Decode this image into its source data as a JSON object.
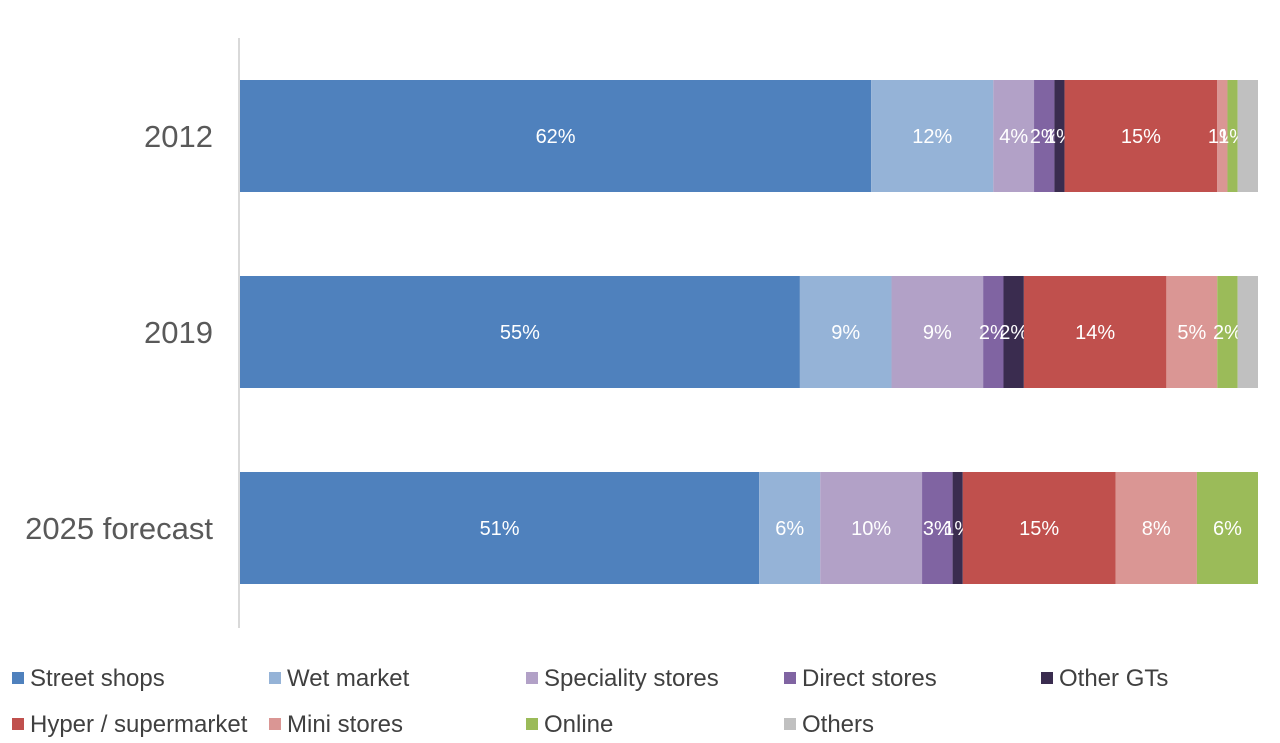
{
  "chart_data": {
    "type": "bar",
    "orientation": "horizontal",
    "stacked": true,
    "categories": [
      "2012",
      "2019",
      "2025 forecast"
    ],
    "series": [
      {
        "name": "Street shops",
        "color": "#4F81BD",
        "values": [
          62,
          55,
          51
        ],
        "labels": [
          "62%",
          "55%",
          "51%"
        ]
      },
      {
        "name": "Wet market",
        "color": "#95B3D7",
        "values": [
          12,
          9,
          6
        ],
        "labels": [
          "12%",
          "9%",
          "6%"
        ]
      },
      {
        "name": "Speciality stores",
        "color": "#B2A1C7",
        "values": [
          4,
          9,
          10
        ],
        "labels": [
          "4%",
          "9%",
          "10%"
        ]
      },
      {
        "name": "Direct stores",
        "color": "#8064A2",
        "values": [
          2,
          2,
          3
        ],
        "labels": [
          "2%",
          "2%",
          "3%"
        ]
      },
      {
        "name": "Other GTs",
        "color": "#3A2C4F",
        "values": [
          1,
          2,
          1
        ],
        "labels": [
          "1%",
          "2%",
          "1%"
        ]
      },
      {
        "name": "Hyper / supermarket",
        "color": "#C0504D",
        "values": [
          15,
          14,
          15
        ],
        "labels": [
          "15%",
          "14%",
          "15%"
        ]
      },
      {
        "name": "Mini stores",
        "color": "#DA9694",
        "values": [
          1,
          5,
          8
        ],
        "labels": [
          "1%",
          "5%",
          "8%"
        ]
      },
      {
        "name": "Online",
        "color": "#9BBB59",
        "values": [
          1,
          2,
          6
        ],
        "labels": [
          "1%",
          "2%",
          "6%"
        ]
      },
      {
        "name": "Others",
        "color": "#C0C0C0",
        "values": [
          2,
          2,
          0
        ],
        "labels": [
          "",
          "",
          ""
        ]
      }
    ],
    "xlim": [
      0,
      100
    ],
    "grid": false,
    "legend_position": "bottom"
  }
}
